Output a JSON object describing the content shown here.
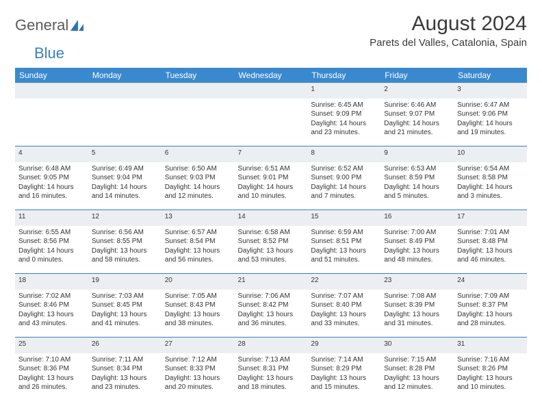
{
  "logo": {
    "word1": "General",
    "word2": "Blue"
  },
  "title": "August 2024",
  "location": "Parets del Valles, Catalonia, Spain",
  "weekday_header_bg": "#3a89cf",
  "weekdays": [
    "Sunday",
    "Monday",
    "Tuesday",
    "Wednesday",
    "Thursday",
    "Friday",
    "Saturday"
  ],
  "weeks": [
    {
      "nums": [
        "",
        "",
        "",
        "",
        "1",
        "2",
        "3"
      ],
      "cells": [
        null,
        null,
        null,
        null,
        {
          "sr": "Sunrise: 6:45 AM",
          "ss": "Sunset: 9:09 PM",
          "d1": "Daylight: 14 hours",
          "d2": "and 23 minutes."
        },
        {
          "sr": "Sunrise: 6:46 AM",
          "ss": "Sunset: 9:07 PM",
          "d1": "Daylight: 14 hours",
          "d2": "and 21 minutes."
        },
        {
          "sr": "Sunrise: 6:47 AM",
          "ss": "Sunset: 9:06 PM",
          "d1": "Daylight: 14 hours",
          "d2": "and 19 minutes."
        }
      ]
    },
    {
      "nums": [
        "4",
        "5",
        "6",
        "7",
        "8",
        "9",
        "10"
      ],
      "cells": [
        {
          "sr": "Sunrise: 6:48 AM",
          "ss": "Sunset: 9:05 PM",
          "d1": "Daylight: 14 hours",
          "d2": "and 16 minutes."
        },
        {
          "sr": "Sunrise: 6:49 AM",
          "ss": "Sunset: 9:04 PM",
          "d1": "Daylight: 14 hours",
          "d2": "and 14 minutes."
        },
        {
          "sr": "Sunrise: 6:50 AM",
          "ss": "Sunset: 9:03 PM",
          "d1": "Daylight: 14 hours",
          "d2": "and 12 minutes."
        },
        {
          "sr": "Sunrise: 6:51 AM",
          "ss": "Sunset: 9:01 PM",
          "d1": "Daylight: 14 hours",
          "d2": "and 10 minutes."
        },
        {
          "sr": "Sunrise: 6:52 AM",
          "ss": "Sunset: 9:00 PM",
          "d1": "Daylight: 14 hours",
          "d2": "and 7 minutes."
        },
        {
          "sr": "Sunrise: 6:53 AM",
          "ss": "Sunset: 8:59 PM",
          "d1": "Daylight: 14 hours",
          "d2": "and 5 minutes."
        },
        {
          "sr": "Sunrise: 6:54 AM",
          "ss": "Sunset: 8:58 PM",
          "d1": "Daylight: 14 hours",
          "d2": "and 3 minutes."
        }
      ]
    },
    {
      "nums": [
        "11",
        "12",
        "13",
        "14",
        "15",
        "16",
        "17"
      ],
      "cells": [
        {
          "sr": "Sunrise: 6:55 AM",
          "ss": "Sunset: 8:56 PM",
          "d1": "Daylight: 14 hours",
          "d2": "and 0 minutes."
        },
        {
          "sr": "Sunrise: 6:56 AM",
          "ss": "Sunset: 8:55 PM",
          "d1": "Daylight: 13 hours",
          "d2": "and 58 minutes."
        },
        {
          "sr": "Sunrise: 6:57 AM",
          "ss": "Sunset: 8:54 PM",
          "d1": "Daylight: 13 hours",
          "d2": "and 56 minutes."
        },
        {
          "sr": "Sunrise: 6:58 AM",
          "ss": "Sunset: 8:52 PM",
          "d1": "Daylight: 13 hours",
          "d2": "and 53 minutes."
        },
        {
          "sr": "Sunrise: 6:59 AM",
          "ss": "Sunset: 8:51 PM",
          "d1": "Daylight: 13 hours",
          "d2": "and 51 minutes."
        },
        {
          "sr": "Sunrise: 7:00 AM",
          "ss": "Sunset: 8:49 PM",
          "d1": "Daylight: 13 hours",
          "d2": "and 48 minutes."
        },
        {
          "sr": "Sunrise: 7:01 AM",
          "ss": "Sunset: 8:48 PM",
          "d1": "Daylight: 13 hours",
          "d2": "and 46 minutes."
        }
      ]
    },
    {
      "nums": [
        "18",
        "19",
        "20",
        "21",
        "22",
        "23",
        "24"
      ],
      "cells": [
        {
          "sr": "Sunrise: 7:02 AM",
          "ss": "Sunset: 8:46 PM",
          "d1": "Daylight: 13 hours",
          "d2": "and 43 minutes."
        },
        {
          "sr": "Sunrise: 7:03 AM",
          "ss": "Sunset: 8:45 PM",
          "d1": "Daylight: 13 hours",
          "d2": "and 41 minutes."
        },
        {
          "sr": "Sunrise: 7:05 AM",
          "ss": "Sunset: 8:43 PM",
          "d1": "Daylight: 13 hours",
          "d2": "and 38 minutes."
        },
        {
          "sr": "Sunrise: 7:06 AM",
          "ss": "Sunset: 8:42 PM",
          "d1": "Daylight: 13 hours",
          "d2": "and 36 minutes."
        },
        {
          "sr": "Sunrise: 7:07 AM",
          "ss": "Sunset: 8:40 PM",
          "d1": "Daylight: 13 hours",
          "d2": "and 33 minutes."
        },
        {
          "sr": "Sunrise: 7:08 AM",
          "ss": "Sunset: 8:39 PM",
          "d1": "Daylight: 13 hours",
          "d2": "and 31 minutes."
        },
        {
          "sr": "Sunrise: 7:09 AM",
          "ss": "Sunset: 8:37 PM",
          "d1": "Daylight: 13 hours",
          "d2": "and 28 minutes."
        }
      ]
    },
    {
      "nums": [
        "25",
        "26",
        "27",
        "28",
        "29",
        "30",
        "31"
      ],
      "cells": [
        {
          "sr": "Sunrise: 7:10 AM",
          "ss": "Sunset: 8:36 PM",
          "d1": "Daylight: 13 hours",
          "d2": "and 26 minutes."
        },
        {
          "sr": "Sunrise: 7:11 AM",
          "ss": "Sunset: 8:34 PM",
          "d1": "Daylight: 13 hours",
          "d2": "and 23 minutes."
        },
        {
          "sr": "Sunrise: 7:12 AM",
          "ss": "Sunset: 8:33 PM",
          "d1": "Daylight: 13 hours",
          "d2": "and 20 minutes."
        },
        {
          "sr": "Sunrise: 7:13 AM",
          "ss": "Sunset: 8:31 PM",
          "d1": "Daylight: 13 hours",
          "d2": "and 18 minutes."
        },
        {
          "sr": "Sunrise: 7:14 AM",
          "ss": "Sunset: 8:29 PM",
          "d1": "Daylight: 13 hours",
          "d2": "and 15 minutes."
        },
        {
          "sr": "Sunrise: 7:15 AM",
          "ss": "Sunset: 8:28 PM",
          "d1": "Daylight: 13 hours",
          "d2": "and 12 minutes."
        },
        {
          "sr": "Sunrise: 7:16 AM",
          "ss": "Sunset: 8:26 PM",
          "d1": "Daylight: 13 hours",
          "d2": "and 10 minutes."
        }
      ]
    }
  ]
}
